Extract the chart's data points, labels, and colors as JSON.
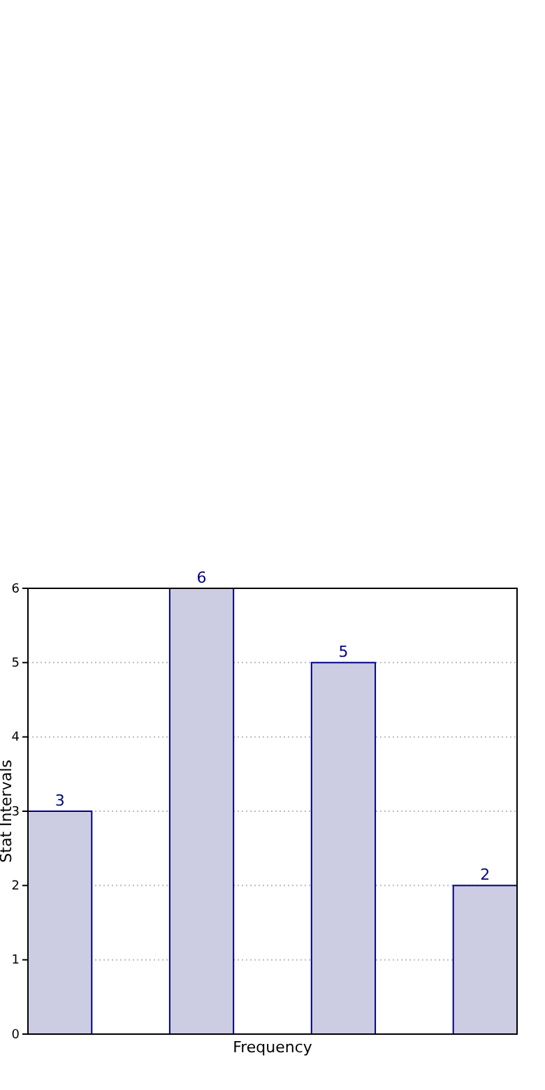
{
  "chart_data": {
    "type": "bar",
    "xlabel": "Frequency",
    "ylabel": "Stat Intervals",
    "categories": [
      null,
      null,
      null,
      null
    ],
    "values": [
      3,
      6,
      5,
      2
    ],
    "color": "#cccce3",
    "ylim": [
      0,
      6
    ],
    "yticks": [
      0,
      1,
      2,
      3,
      4,
      5,
      6
    ],
    "grid": "y",
    "data_labels": true,
    "tick_labels": "y"
  }
}
